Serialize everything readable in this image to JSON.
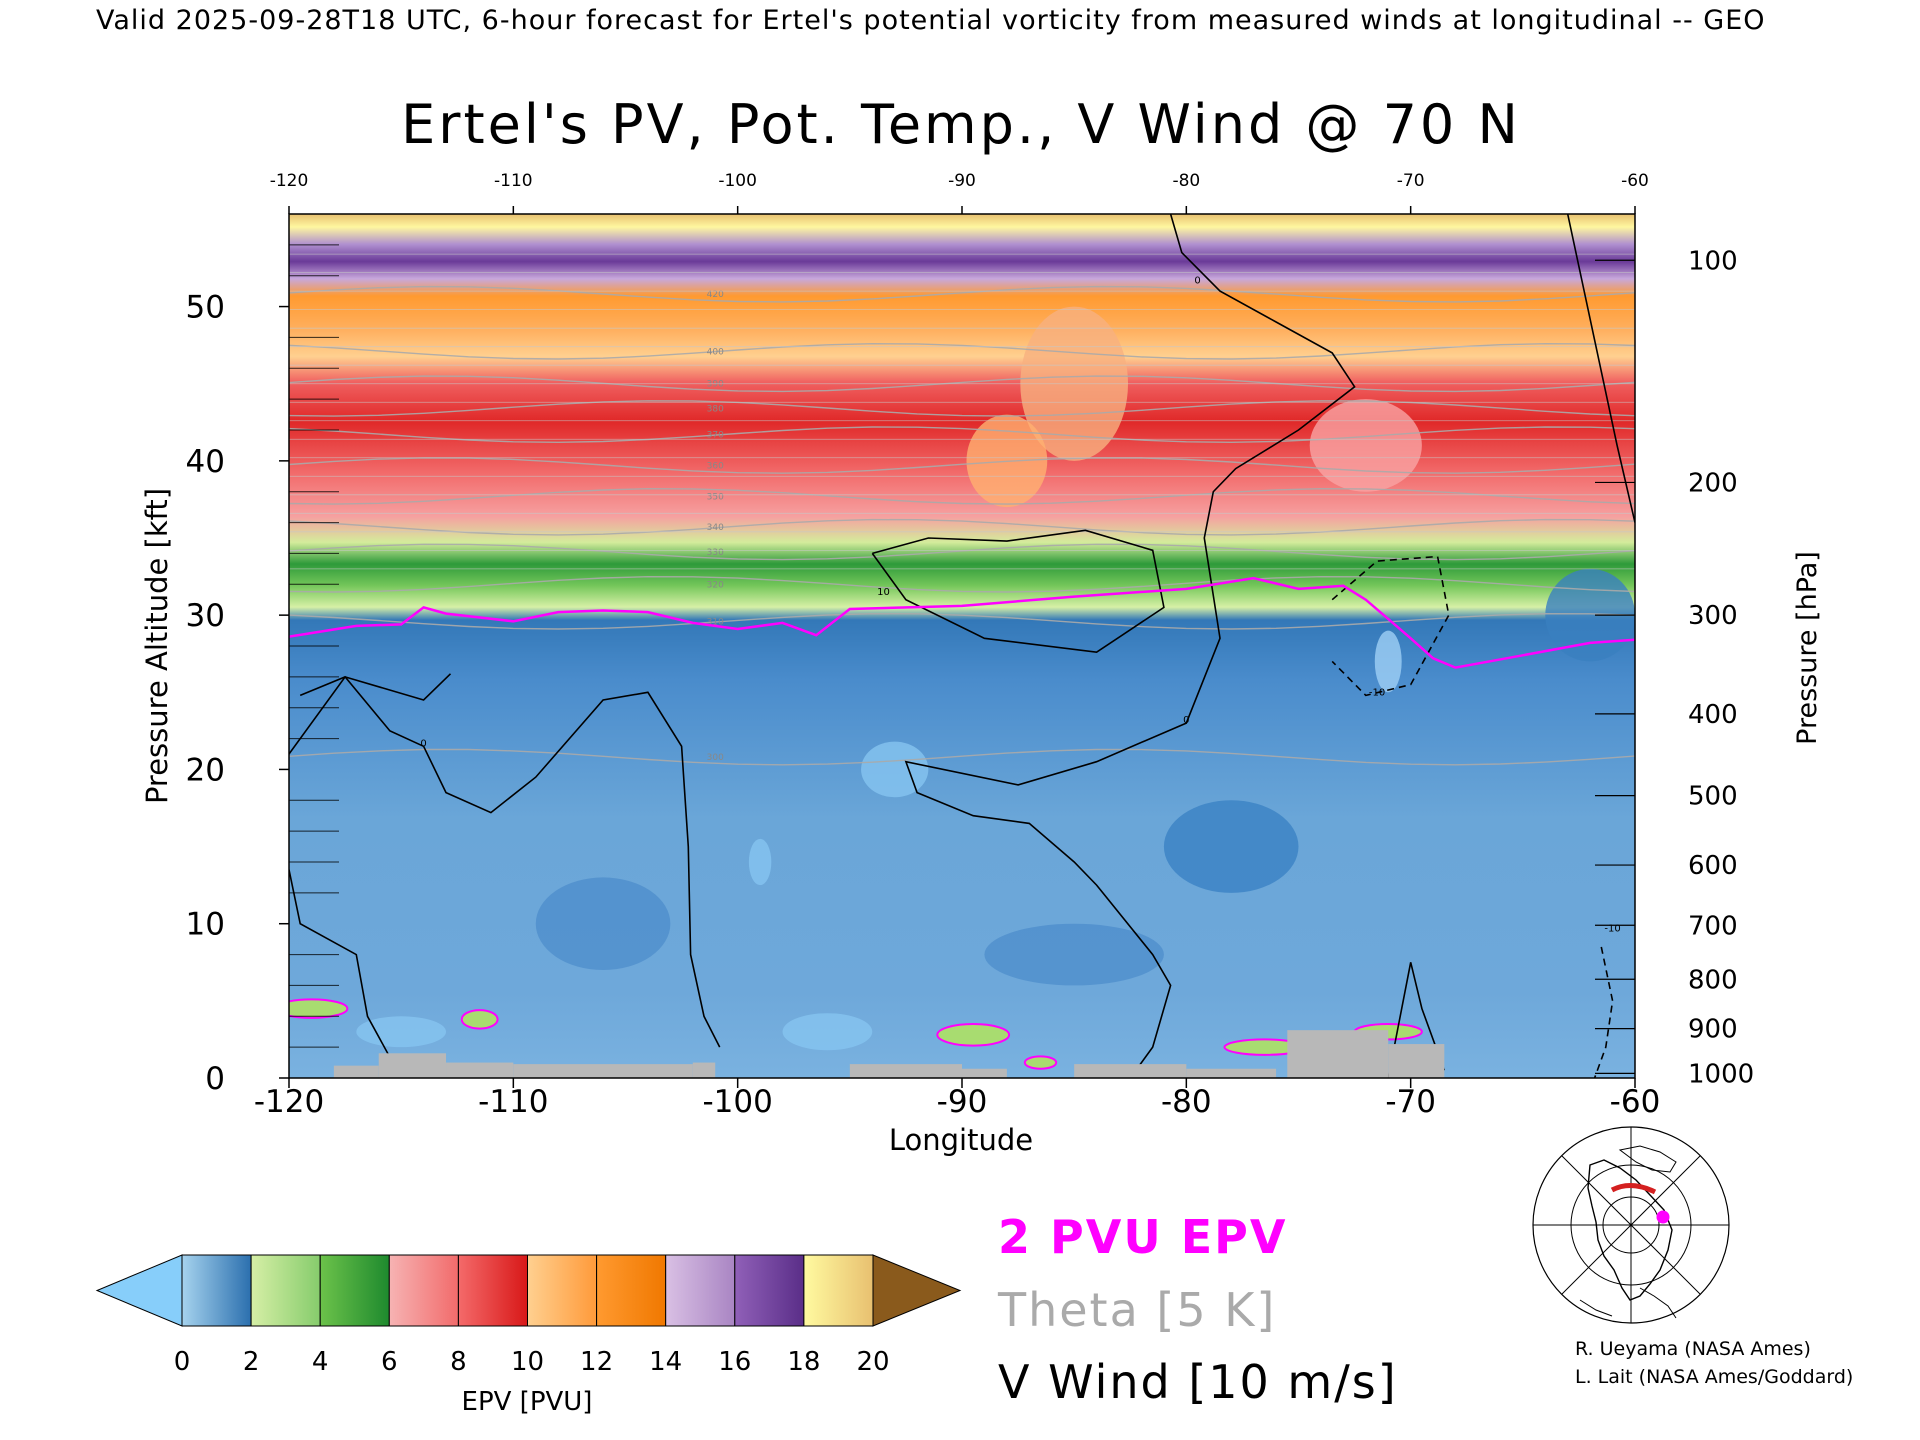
{
  "header": {
    "valid_line": "Valid 2025-09-28T18 UTC, 6-hour forecast for Ertel's potential vorticity from measured winds at longitudinal -- GEO"
  },
  "chart_data": {
    "type": "heatmap",
    "title": "Ertel's PV, Pot. Temp., V Wind @ 70 N",
    "xlabel": "Longitude",
    "ylabel_left": "Pressure Altitude [kft]",
    "ylabel_right": "Pressure [hPa]",
    "xlim": [
      -120,
      -60
    ],
    "ylim": [
      0,
      56
    ],
    "x_ticks": [
      -120,
      -110,
      -100,
      -90,
      -80,
      -70,
      -60
    ],
    "x_tick_labels": [
      "-120",
      "-110",
      "-100",
      "-90",
      "-80",
      "-70",
      "-60"
    ],
    "y_ticks": [
      0,
      10,
      20,
      30,
      40,
      50
    ],
    "y_tick_labels": [
      "0",
      "10",
      "20",
      "30",
      "40",
      "50"
    ],
    "pressure_ticks": [
      {
        "hpa": "100",
        "kft": 53.0
      },
      {
        "hpa": "200",
        "kft": 38.6
      },
      {
        "hpa": "300",
        "kft": 30.0
      },
      {
        "hpa": "400",
        "kft": 23.6
      },
      {
        "hpa": "500",
        "kft": 18.3
      },
      {
        "hpa": "600",
        "kft": 13.8
      },
      {
        "hpa": "700",
        "kft": 9.9
      },
      {
        "hpa": "800",
        "kft": 6.4
      },
      {
        "hpa": "900",
        "kft": 3.2
      },
      {
        "hpa": "1000",
        "kft": 0.3
      }
    ],
    "pv_2pvu_contour": {
      "label": "2 PVU EPV",
      "color": "#ff00ff",
      "x": [
        -120,
        -117,
        -115,
        -114,
        -113,
        -110,
        -108,
        -106,
        -104,
        -102,
        -100,
        -98,
        -96.5,
        -95,
        -90,
        -85,
        -80,
        -77,
        -75,
        -73,
        -72,
        -70,
        -69,
        -68,
        -65,
        -62,
        -60
      ],
      "y": [
        28.6,
        29.3,
        29.4,
        30.5,
        30.1,
        29.6,
        30.2,
        30.3,
        30.2,
        29.5,
        29.1,
        29.5,
        28.7,
        30.4,
        30.6,
        31.2,
        31.7,
        32.4,
        31.7,
        31.9,
        31.0,
        28.5,
        27.2,
        26.6,
        27.4,
        28.2,
        28.4
      ]
    },
    "theta_contours": {
      "label": "Theta [5 K]",
      "color": "#aaaaaa",
      "levels": [
        {
          "value": 420,
          "y": 50.8
        },
        {
          "value": 400,
          "y": 47.1
        },
        {
          "value": 390,
          "y": 45.0
        },
        {
          "value": 380,
          "y": 43.4
        },
        {
          "value": 370,
          "y": 41.7
        },
        {
          "value": 360,
          "y": 39.7
        },
        {
          "value": 350,
          "y": 37.7
        },
        {
          "value": 340,
          "y": 35.7
        },
        {
          "value": 330,
          "y": 34.1
        },
        {
          "value": 320,
          "y": 32.0
        },
        {
          "value": 310,
          "y": 29.6
        },
        {
          "value": 300,
          "y": 20.8
        }
      ]
    },
    "vwind_contours": {
      "label": "V Wind [10 m/s]",
      "color": "#000000",
      "zero_line_1": {
        "x": [
          -119.5,
          -117.5,
          -115.5,
          -114,
          -113,
          -111,
          -109,
          -106,
          -104,
          -102.5,
          -102.2,
          -102.1,
          -101.5,
          -100.8
        ],
        "y": [
          24.8,
          26.0,
          22.5,
          21.5,
          18.5,
          17.2,
          19.5,
          24.5,
          25.0,
          21.5,
          15.0,
          8.0,
          4.0,
          2.0
        ]
      },
      "zero_line_2": {
        "x": [
          -120,
          -117.5,
          -114,
          -112.8
        ],
        "y": [
          21.0,
          26.0,
          24.5,
          26.2
        ]
      },
      "zero_line_3": {
        "x": [
          -80.7,
          -80.2,
          -78.5,
          -76.0,
          -73.5,
          -72.5,
          -75.0,
          -77.8,
          -78.8,
          -79.2,
          -78.5,
          -80.0,
          -84.0,
          -87.5,
          -92.5,
          -92.0,
          -89.5,
          -87.0,
          -85.0,
          -84.0,
          -81.5,
          -80.7,
          -81.5,
          -82.5
        ],
        "y": [
          56.0,
          53.5,
          51.0,
          49.0,
          47.0,
          44.8,
          42.0,
          39.5,
          38.0,
          35.0,
          28.5,
          23.0,
          20.5,
          19.0,
          20.5,
          18.5,
          17.0,
          16.5,
          14.0,
          12.5,
          8.0,
          6.0,
          2.0,
          0.0
        ]
      },
      "zero_line_4": {
        "x": [
          -120,
          -119.5,
          -117,
          -116.5,
          -115
        ],
        "y": [
          13.5,
          10.0,
          8.0,
          4.0,
          0.0
        ]
      },
      "zero_line_5": {
        "x": [
          -68.5,
          -69.5,
          -70,
          -71
        ],
        "y": [
          0.5,
          4.5,
          7.5,
          0.0
        ]
      },
      "zero_line_6": {
        "x": [
          -63,
          -60.8,
          -60
        ],
        "y": [
          56.0,
          41.0,
          36.0
        ]
      },
      "plus10_line": {
        "x": [
          -94.0,
          -91.5,
          -88.0,
          -84.5,
          -81.5,
          -81.0,
          -84.0,
          -89.0,
          -92.5,
          -94.0
        ],
        "y": [
          34.0,
          35.0,
          34.8,
          35.5,
          34.2,
          30.5,
          27.6,
          28.5,
          31.0,
          34.0
        ]
      },
      "minus10_line": {
        "x": [
          -73.5,
          -71.5,
          -68.8,
          -68.3,
          -70.0,
          -72.0,
          -73.5
        ],
        "y": [
          31.0,
          33.5,
          33.8,
          30.0,
          25.5,
          24.8,
          27.0
        ]
      },
      "minus10_line_b": {
        "x": [
          -61.5,
          -61.0,
          -61.3,
          -61.8
        ],
        "y": [
          8.5,
          5.0,
          2.0,
          0.0
        ]
      }
    },
    "epv_colorbar": {
      "label": "EPV [PVU]",
      "tick_labels": [
        "0",
        "2",
        "4",
        "6",
        "8",
        "10",
        "12",
        "14",
        "16",
        "18",
        "20"
      ],
      "segments": [
        {
          "from": 0,
          "to": 2,
          "colors": [
            "#a6d3ee",
            "#2b6fae"
          ]
        },
        {
          "from": 2,
          "to": 4,
          "colors": [
            "#d6efa6",
            "#86cc6c"
          ]
        },
        {
          "from": 4,
          "to": 6,
          "colors": [
            "#6cc24a",
            "#1e8a2e"
          ]
        },
        {
          "from": 6,
          "to": 8,
          "colors": [
            "#f6b3b3",
            "#f26b6b"
          ]
        },
        {
          "from": 8,
          "to": 10,
          "colors": [
            "#f46a6a",
            "#d81818"
          ]
        },
        {
          "from": 10,
          "to": 12,
          "colors": [
            "#ffd090",
            "#ff9a3a"
          ]
        },
        {
          "from": 12,
          "to": 14,
          "colors": [
            "#ff9a30",
            "#f07800"
          ]
        },
        {
          "from": 14,
          "to": 16,
          "colors": [
            "#d9c0e4",
            "#a985c3"
          ]
        },
        {
          "from": 16,
          "to": 18,
          "colors": [
            "#9060b8",
            "#5a2e88"
          ]
        },
        {
          "from": 18,
          "to": 20,
          "colors": [
            "#fffaa0",
            "#e8c070"
          ]
        }
      ],
      "under_color": "#87cefa",
      "over_color": "#8a5a1c"
    },
    "legend": [
      {
        "text": "2 PVU EPV",
        "color": "#ff00ff"
      },
      {
        "text": "Theta [5 K]",
        "color": "#aaaaaa"
      },
      {
        "text": "V Wind [10 m/s]",
        "color": "#000000"
      }
    ],
    "colors": {
      "low_pv": "#3a7fbf",
      "terrain": "#b8b8b8"
    }
  },
  "credits": {
    "line1": "R. Ueyama (NASA Ames)",
    "line2": "L. Lait (NASA Ames/Goddard)"
  }
}
